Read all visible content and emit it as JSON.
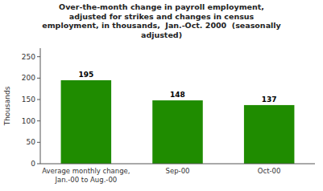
{
  "chart_data": {
    "type": "bar",
    "title": "Over-the-month change in payroll employment,\nadjusted for strikes and changes in census\nemployment, in thousands,  Jan.-Oct. 2000  (seasonally\nadjusted)",
    "categories": [
      "Average monthly change,\nJan.-00 to Aug.-00",
      "Sep-00",
      "Oct-00"
    ],
    "values": [
      195,
      148,
      137
    ],
    "color": "#1f8c00",
    "ylabel": "Thousands",
    "ylim": [
      0,
      270
    ],
    "yticks": [
      0,
      50,
      100,
      150,
      200,
      250
    ],
    "grid": false,
    "data_labels": true
  }
}
